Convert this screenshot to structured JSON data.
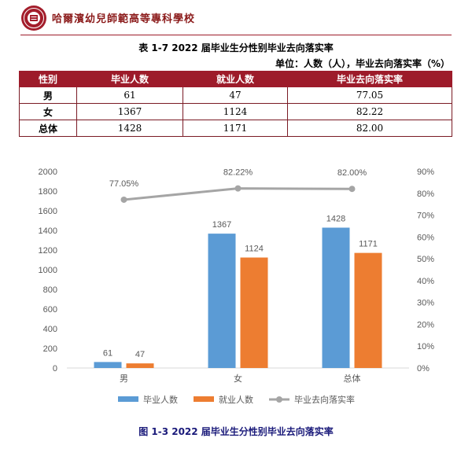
{
  "header": {
    "school_name": "哈爾濱幼兒師範高等專科學校"
  },
  "table": {
    "title": "表 1-7 2022 届毕业生分性别毕业去向落实率",
    "unit": "单位：人数（人），毕业去向落实率（%）",
    "columns": [
      "性别",
      "毕业人数",
      "就业人数",
      "毕业去向落实率"
    ],
    "rows": [
      [
        "男",
        "61",
        "47",
        "77.05"
      ],
      [
        "女",
        "1367",
        "1124",
        "82.22"
      ],
      [
        "总体",
        "1428",
        "1171",
        "82.00"
      ]
    ]
  },
  "chart_data": {
    "type": "bar",
    "categories": [
      "男",
      "女",
      "总体"
    ],
    "series": [
      {
        "name": "毕业人数",
        "kind": "bar",
        "axis": "left",
        "color": "#5b9bd5",
        "values": [
          61,
          1367,
          1428
        ],
        "labels": [
          "61",
          "1367",
          "1428"
        ]
      },
      {
        "name": "就业人数",
        "kind": "bar",
        "axis": "left",
        "color": "#ed7d31",
        "values": [
          47,
          1124,
          1171
        ],
        "labels": [
          "47",
          "1124",
          "1171"
        ]
      },
      {
        "name": "毕业去向落实率",
        "kind": "line",
        "axis": "right",
        "color": "#a5a5a5",
        "values": [
          77.05,
          82.22,
          82.0
        ],
        "labels": [
          "77.05%",
          "82.22%",
          "82.00%"
        ]
      }
    ],
    "y_left": {
      "min": 0,
      "max": 2000,
      "step": 200,
      "ticks": [
        "0",
        "200",
        "400",
        "600",
        "800",
        "1000",
        "1200",
        "1400",
        "1600",
        "1800",
        "2000"
      ]
    },
    "y_right": {
      "min": 0,
      "max": 90,
      "step": 10,
      "ticks": [
        "0%",
        "10%",
        "20%",
        "30%",
        "40%",
        "50%",
        "60%",
        "70%",
        "80%",
        "90%"
      ]
    },
    "grid": false,
    "legend_position": "bottom",
    "caption": "图 1-3 2022 届毕业生分性别毕业去向落实率"
  }
}
